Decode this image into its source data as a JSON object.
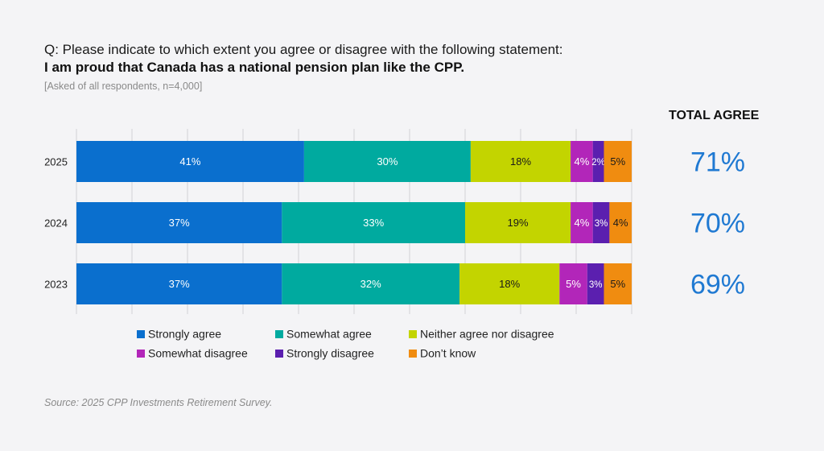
{
  "header": {
    "question": "Q: Please indicate to which extent you agree or disagree with the following statement:",
    "statement": "I am proud that Canada has a national pension plan like the CPP.",
    "note": "[Asked of all respondents, n=4,000]"
  },
  "total_agree": {
    "title": "TOTAL AGREE",
    "values": [
      "71%",
      "70%",
      "69%"
    ]
  },
  "footer": {
    "source": "Source: 2025 CPP Investments Retirement Survey."
  },
  "chart_data": {
    "type": "bar",
    "orientation": "horizontal",
    "stacked": true,
    "normalized": true,
    "categories": [
      "2025",
      "2024",
      "2023"
    ],
    "series": [
      {
        "name": "Strongly agree",
        "color": "#0a6fce",
        "label_color": "#ffffff",
        "values": [
          41,
          37,
          37
        ],
        "labels": [
          "41%",
          "37%",
          "37%"
        ]
      },
      {
        "name": "Somewhat agree",
        "color": "#00aa9f",
        "label_color": "#ffffff",
        "values": [
          30,
          33,
          32
        ],
        "labels": [
          "30%",
          "33%",
          "32%"
        ]
      },
      {
        "name": "Neither agree nor disagree",
        "color": "#c3d400",
        "label_color": "#1a1a1a",
        "values": [
          18,
          19,
          18
        ],
        "labels": [
          "18%",
          "19%",
          "18%"
        ]
      },
      {
        "name": "Somewhat disagree",
        "color": "#b226b9",
        "label_color": "#ffffff",
        "values": [
          4,
          4,
          5
        ],
        "labels": [
          "4%",
          "4%",
          "5%"
        ]
      },
      {
        "name": "Strongly disagree",
        "color": "#5b1faf",
        "label_color": "#ffffff",
        "values": [
          2,
          3,
          3
        ],
        "labels": [
          "2%",
          "3%",
          "3%"
        ]
      },
      {
        "name": "Don’t know",
        "color": "#f08c10",
        "label_color": "#1a1a1a",
        "values": [
          5,
          4,
          5
        ],
        "labels": [
          "5%",
          "4%",
          "5%"
        ]
      }
    ],
    "xlim": [
      0,
      100
    ],
    "grid": true,
    "legend_position": "bottom"
  }
}
